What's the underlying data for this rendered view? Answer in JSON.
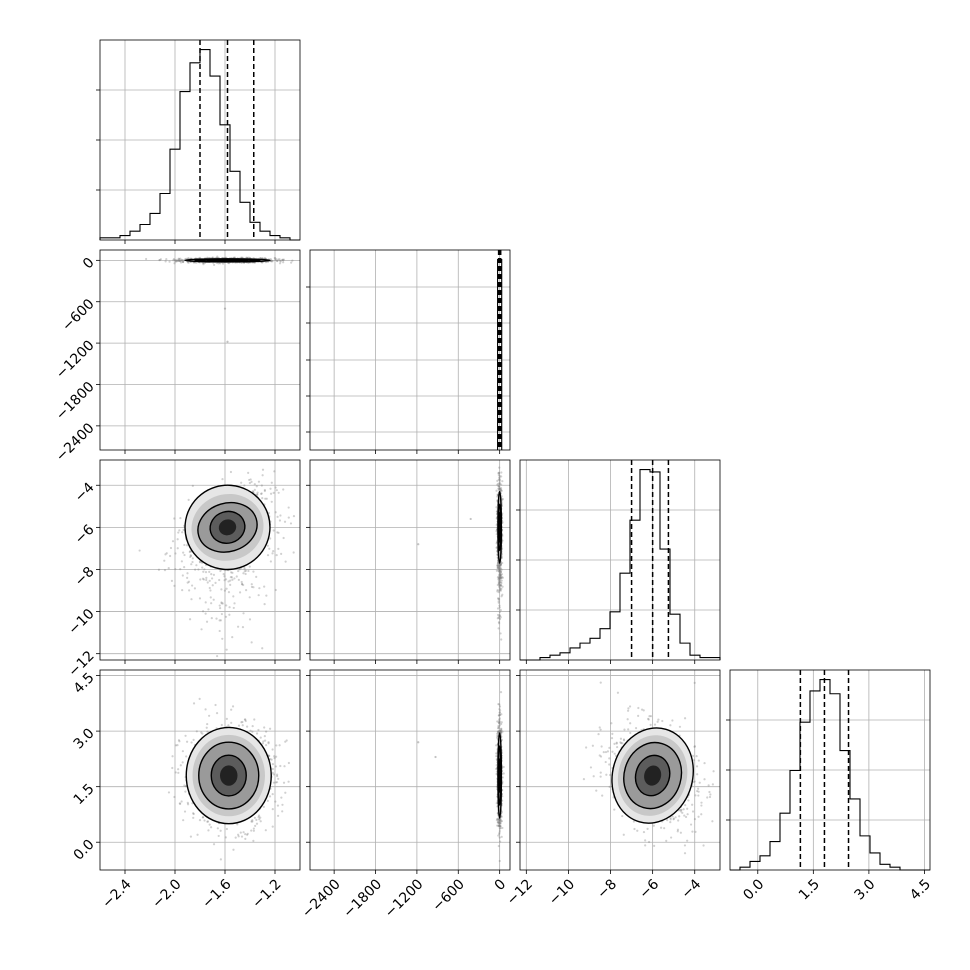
{
  "chart_data": {
    "type": "corner",
    "grid": true,
    "parameters": [
      {
        "range": [
          -2.6,
          -1.0
        ],
        "ticks": [
          -2.4,
          -2.0,
          -1.6,
          -1.2
        ],
        "tick_labels": [
          "−2.4",
          "−2.0",
          "−1.6",
          "−1.2"
        ],
        "quantiles": [
          -1.8,
          -1.58,
          -1.37
        ],
        "histogram": {
          "edges_start": -2.6,
          "bin_width": 0.08,
          "counts": [
            1,
            1,
            2,
            4,
            7,
            12,
            21,
            41,
            67,
            80,
            86,
            74,
            52,
            31,
            17,
            8,
            4,
            2,
            1,
            0
          ]
        }
      },
      {
        "range": [
          -2750,
          150
        ],
        "ticks": [
          -2400,
          -1800,
          -1200,
          -600,
          0
        ],
        "tick_labels": [
          "−2400",
          "−1800",
          "−1200",
          "−600",
          "0"
        ],
        "quantiles": [
          -15,
          0,
          15
        ],
        "histogram": {
          "edges_start": -30,
          "bin_width": 60,
          "counts": [
            100
          ]
        }
      },
      {
        "range": [
          -12.3,
          -2.8
        ],
        "ticks": [
          -12,
          -10,
          -8,
          -6,
          -4
        ],
        "tick_labels": [
          "−12",
          "−10",
          "−8",
          "−6",
          "−4"
        ],
        "quantiles": [
          -7.0,
          -6.0,
          -5.25
        ],
        "histogram": {
          "edges_start": -12.3,
          "bin_width": 0.475,
          "counts": [
            0,
            0,
            1,
            2,
            3,
            5,
            7,
            9,
            13,
            20,
            36,
            58,
            79,
            78,
            46,
            19,
            7,
            2,
            1,
            1
          ]
        }
      },
      {
        "range": [
          -0.75,
          4.65
        ],
        "ticks": [
          0.0,
          1.5,
          3.0,
          4.5
        ],
        "tick_labels": [
          "0.0",
          "1.5",
          "3.0",
          "4.5"
        ],
        "quantiles": [
          1.15,
          1.8,
          2.45
        ],
        "histogram": {
          "edges_start": -0.75,
          "bin_width": 0.27,
          "counts": [
            0,
            1,
            3,
            5,
            10,
            20,
            35,
            52,
            63,
            67,
            62,
            42,
            25,
            12,
            6,
            2,
            1,
            0,
            0,
            0
          ]
        }
      }
    ],
    "panels_2d": [
      {
        "x_param": 0,
        "y_param": 1,
        "center": [
          -1.58,
          0
        ],
        "spread": [
          0.17,
          15
        ],
        "rho": 0,
        "contour_levels": [
          [
            0.34,
            22
          ],
          [
            0.26,
            15
          ],
          [
            0.16,
            9
          ]
        ],
        "outliers": [
          [
            -1.6,
            -700
          ],
          [
            -1.58,
            -1180
          ]
        ]
      },
      {
        "x_param": 0,
        "y_param": 2,
        "center": [
          -1.58,
          -6.0
        ],
        "spread": [
          0.17,
          0.95
        ],
        "rho": 0.32,
        "contour_levels": [
          [
            0.34,
            2.0
          ],
          [
            0.24,
            1.15
          ],
          [
            0.14,
            0.75
          ]
        ],
        "outliers": []
      },
      {
        "x_param": 1,
        "y_param": 2,
        "center": [
          0,
          -6.0
        ],
        "spread": [
          15,
          0.95
        ],
        "rho": 0,
        "contour_levels": [
          [
            25,
            1.7
          ],
          [
            18,
            1.1
          ],
          [
            11,
            0.7
          ]
        ],
        "outliers": [
          [
            -420,
            -5.6
          ],
          [
            -1180,
            -6.8
          ]
        ]
      },
      {
        "x_param": 0,
        "y_param": 3,
        "center": [
          -1.57,
          1.8
        ],
        "spread": [
          0.17,
          0.62
        ],
        "rho": 0,
        "contour_levels": [
          [
            0.34,
            1.3
          ],
          [
            0.24,
            0.9
          ],
          [
            0.14,
            0.55
          ]
        ],
        "outliers": []
      },
      {
        "x_param": 1,
        "y_param": 3,
        "center": [
          0,
          1.8
        ],
        "spread": [
          15,
          0.62
        ],
        "rho": 0,
        "contour_levels": [
          [
            25,
            1.15
          ],
          [
            18,
            0.8
          ],
          [
            11,
            0.45
          ]
        ],
        "outliers": [
          [
            -1180,
            2.7
          ],
          [
            -930,
            2.3
          ]
        ]
      },
      {
        "x_param": 2,
        "y_param": 3,
        "center": [
          -6.0,
          1.8
        ],
        "spread": [
          0.95,
          0.62
        ],
        "rho": -0.25,
        "contour_levels": [
          [
            1.9,
            1.3
          ],
          [
            1.35,
            0.9
          ],
          [
            0.8,
            0.55
          ]
        ],
        "outliers": []
      }
    ]
  }
}
